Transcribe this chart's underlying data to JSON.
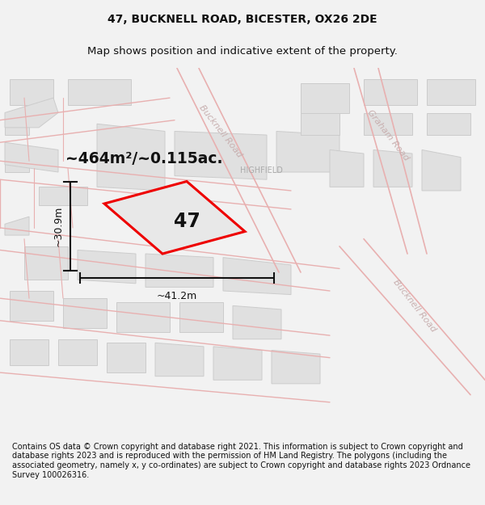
{
  "title_line1": "47, BUCKNELL ROAD, BICESTER, OX26 2DE",
  "title_line2": "Map shows position and indicative extent of the property.",
  "footer_text": "Contains OS data © Crown copyright and database right 2021. This information is subject to Crown copyright and database rights 2023 and is reproduced with the permission of HM Land Registry. The polygons (including the associated geometry, namely x, y co-ordinates) are subject to Crown copyright and database rights 2023 Ordnance Survey 100026316.",
  "area_text": "~464m²/~0.115ac.",
  "property_number": "47",
  "dim_width": "~41.2m",
  "dim_height": "~30.9m",
  "road_label_bucknell_top": "Bucknell Road",
  "road_label_graham": "Graham Road",
  "road_label_bucknell_right": "Bucknell Road",
  "road_label_highfield": "HIGHFIELD",
  "bg_color": "#f2f2f2",
  "map_bg": "#ffffff",
  "road_line_color": "#e8b0b0",
  "bld_fill": "#e0e0e0",
  "bld_edge": "#cccccc",
  "property_edge": "#ee0000",
  "property_fill": "#e8e8e8",
  "title_fontsize": 10,
  "subtitle_fontsize": 9.5,
  "footer_fontsize": 7.0
}
